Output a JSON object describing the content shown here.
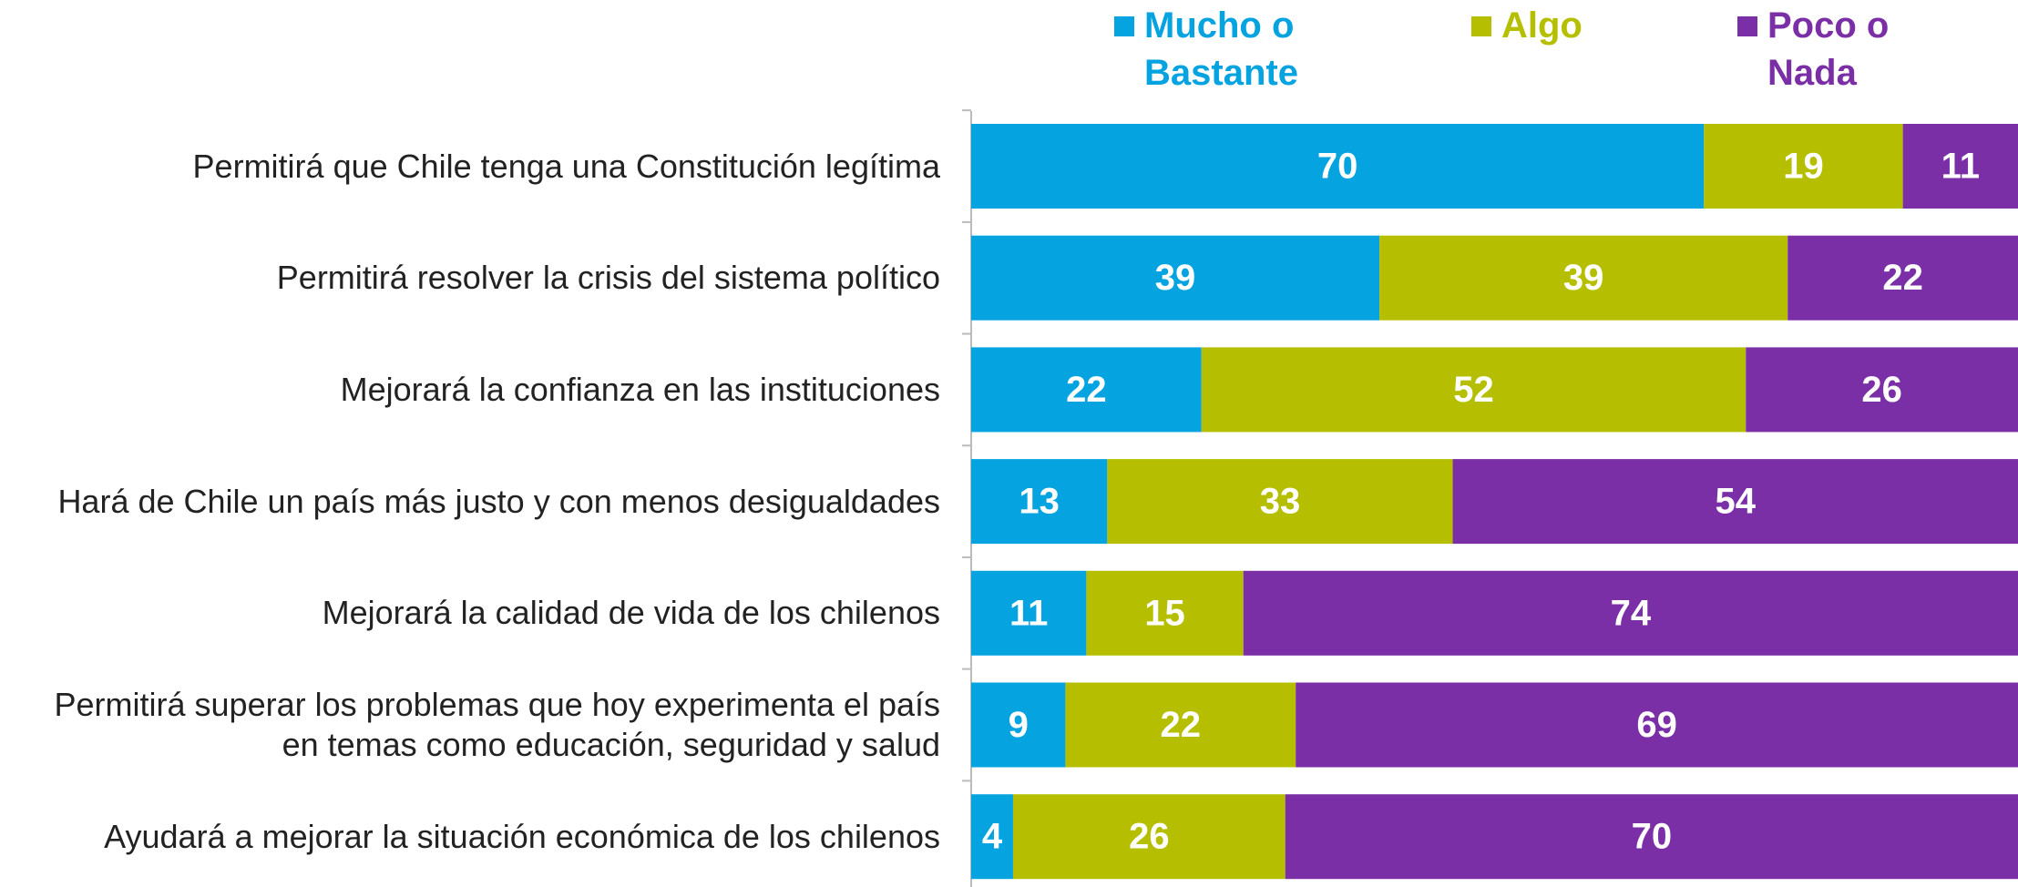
{
  "chart_data": {
    "type": "stacked_bar_horizontal",
    "categories": [
      "Permitirá que Chile tenga una Constitución legítima",
      "Permitirá resolver la crisis del sistema político",
      "Mejorará la confianza en las instituciones",
      "Hará de Chile un país más justo y con menos desigualdades",
      "Mejorará la calidad de vida de los chilenos",
      "Permitirá superar los problemas que hoy experimenta el país en temas como educación, seguridad y salud",
      "Ayudará a mejorar la situación económica de los chilenos"
    ],
    "series": [
      {
        "name": "Mucho o Bastante",
        "color": "#05a3e0",
        "values": [
          70,
          39,
          22,
          13,
          11,
          9,
          4
        ]
      },
      {
        "name": "Algo",
        "color": "#b5bf00",
        "values": [
          19,
          39,
          52,
          33,
          15,
          22,
          26
        ]
      },
      {
        "name": "Poco o Nada",
        "color": "#7b2fa6",
        "values": [
          11,
          22,
          26,
          54,
          74,
          69,
          70
        ]
      }
    ],
    "xlim": [
      0,
      100
    ]
  }
}
